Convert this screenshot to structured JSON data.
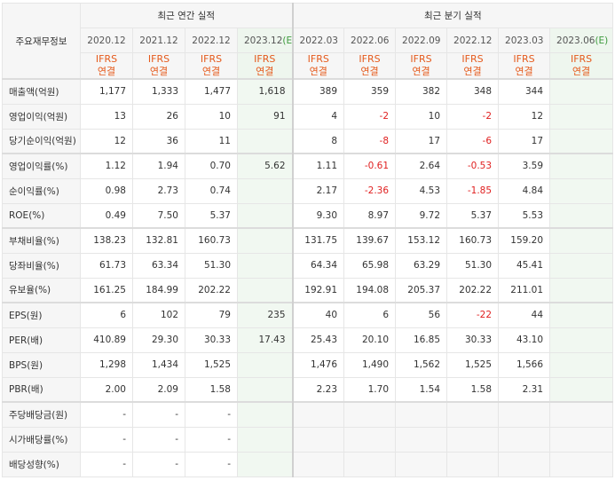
{
  "header": {
    "row_label": "주요재무정보",
    "annual_group": "최근 연간 실적",
    "quarter_group": "최근 분기 실적"
  },
  "annual_periods": [
    {
      "label": "2020.12",
      "est": ""
    },
    {
      "label": "2021.12",
      "est": ""
    },
    {
      "label": "2022.12",
      "est": ""
    },
    {
      "label": "2023.12",
      "est": "(E)"
    }
  ],
  "quarter_periods": [
    {
      "label": "2022.03",
      "est": ""
    },
    {
      "label": "2022.06",
      "est": ""
    },
    {
      "label": "2022.09",
      "est": ""
    },
    {
      "label": "2022.12",
      "est": ""
    },
    {
      "label": "2023.03",
      "est": ""
    },
    {
      "label": "2023.06",
      "est": "(E)"
    }
  ],
  "ifrs": {
    "line1": "IFRS",
    "line2": "연결"
  },
  "rows": [
    {
      "label": "매출액(억원)",
      "values": [
        "1,177",
        "1,333",
        "1,477",
        "1,618",
        "389",
        "359",
        "382",
        "348",
        "344",
        ""
      ]
    },
    {
      "label": "영업이익(억원)",
      "values": [
        "13",
        "26",
        "10",
        "91",
        "4",
        "-2",
        "10",
        "-2",
        "12",
        ""
      ]
    },
    {
      "label": "당기순이익(억원)",
      "values": [
        "12",
        "36",
        "11",
        "",
        "8",
        "-8",
        "17",
        "-6",
        "17",
        ""
      ]
    },
    {
      "label": "영업이익률(%)",
      "values": [
        "1.12",
        "1.94",
        "0.70",
        "5.62",
        "1.11",
        "-0.61",
        "2.64",
        "-0.53",
        "3.59",
        ""
      ]
    },
    {
      "label": "순이익률(%)",
      "values": [
        "0.98",
        "2.73",
        "0.74",
        "",
        "2.17",
        "-2.36",
        "4.53",
        "-1.85",
        "4.84",
        ""
      ]
    },
    {
      "label": "ROE(%)",
      "values": [
        "0.49",
        "7.50",
        "5.37",
        "",
        "9.30",
        "8.97",
        "9.72",
        "5.37",
        "5.53",
        ""
      ]
    },
    {
      "label": "부채비율(%)",
      "values": [
        "138.23",
        "132.81",
        "160.73",
        "",
        "131.75",
        "139.67",
        "153.12",
        "160.73",
        "159.20",
        ""
      ]
    },
    {
      "label": "당좌비율(%)",
      "values": [
        "61.73",
        "63.34",
        "51.30",
        "",
        "64.34",
        "65.98",
        "63.29",
        "51.30",
        "45.41",
        ""
      ]
    },
    {
      "label": "유보율(%)",
      "values": [
        "161.25",
        "184.99",
        "202.22",
        "",
        "192.91",
        "194.08",
        "205.37",
        "202.22",
        "211.01",
        ""
      ]
    },
    {
      "label": "EPS(원)",
      "values": [
        "6",
        "102",
        "79",
        "235",
        "40",
        "6",
        "56",
        "-22",
        "44",
        ""
      ]
    },
    {
      "label": "PER(배)",
      "values": [
        "410.89",
        "29.30",
        "30.33",
        "17.43",
        "25.43",
        "20.10",
        "16.85",
        "30.33",
        "43.10",
        ""
      ]
    },
    {
      "label": "BPS(원)",
      "values": [
        "1,298",
        "1,434",
        "1,525",
        "",
        "1,476",
        "1,490",
        "1,562",
        "1,525",
        "1,566",
        ""
      ]
    },
    {
      "label": "PBR(배)",
      "values": [
        "2.00",
        "2.09",
        "1.58",
        "",
        "2.23",
        "1.70",
        "1.54",
        "1.58",
        "2.31",
        ""
      ]
    },
    {
      "label": "주당배당금(원)",
      "values": [
        "-",
        "-",
        "-",
        "",
        "",
        "",
        "",
        "",
        "",
        ""
      ]
    },
    {
      "label": "시가배당률(%)",
      "values": [
        "-",
        "-",
        "-",
        "",
        "",
        "",
        "",
        "",
        "",
        ""
      ]
    },
    {
      "label": "배당성향(%)",
      "values": [
        "-",
        "-",
        "-",
        "",
        "",
        "",
        "",
        "",
        "",
        ""
      ]
    }
  ],
  "colors": {
    "negative": "#e02020",
    "ifrs": "#e55a1c",
    "estimate_bg": "#f1f8f1",
    "estimate_mark": "#3c9a3c"
  }
}
